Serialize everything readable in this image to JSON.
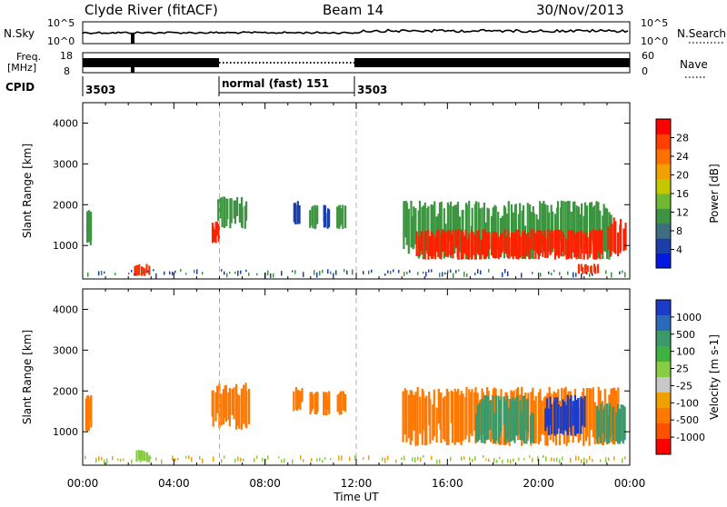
{
  "header": {
    "station": "Clyde River (fitACF)",
    "beam": "Beam 14",
    "date": "30/Nov/2013"
  },
  "top_panels": {
    "nsky_label": "N.Sky",
    "nsky_tick_top": "10^5",
    "nsky_tick_bottom": "10^0",
    "nsearch_label": "N.Search",
    "nsearch_tick_top": "10^5",
    "nsearch_tick_bottom": "10^0",
    "freq_label_1": "Freq.",
    "freq_label_2": "[MHz]",
    "freq_tick_top": "18",
    "freq_tick_bottom": "8",
    "nave_label": "Nave",
    "nave_tick_top": "60",
    "nave_tick_bottom": "0",
    "cpid_label": "CPID",
    "cpid_segments": [
      {
        "label": "3503",
        "start_hour": 0.0
      },
      {
        "label": "normal (fast) 151",
        "start_hour": 6.0
      },
      {
        "label": "3503",
        "start_hour": 12.0
      }
    ]
  },
  "chart_data": [
    {
      "type": "heatmap",
      "name": "power",
      "ylabel": "Slant Range [km]",
      "xlabel": "Time UT",
      "xlim": [
        0,
        24
      ],
      "ylim": [
        180,
        4500
      ],
      "yticks": [
        1000,
        2000,
        3000,
        4000
      ],
      "xticks": [
        "00:00",
        "04:00",
        "08:00",
        "12:00",
        "16:00",
        "20:00",
        "00:00"
      ],
      "colorbar_label": "Power [dB]",
      "colorbar_ticks": [
        4,
        8,
        12,
        16,
        20,
        24,
        28
      ],
      "colorbar_colors": [
        "#0018e0",
        "#1c3ea8",
        "#3c6e80",
        "#3c9440",
        "#70b830",
        "#c4c800",
        "#f0a000",
        "#ff7000",
        "#ff4000",
        "#ff0000"
      ],
      "features": [
        {
          "t0": 0.1,
          "t1": 0.35,
          "r0": 1000,
          "r1": 1900,
          "color": "#3c9440"
        },
        {
          "t0": 2.2,
          "t1": 2.9,
          "r0": 250,
          "r1": 550,
          "color": "#ff3000"
        },
        {
          "t0": 5.6,
          "t1": 5.95,
          "r0": 1050,
          "r1": 1600,
          "color": "#ff2000"
        },
        {
          "t0": 5.9,
          "t1": 7.2,
          "r0": 1400,
          "r1": 2200,
          "color": "#3c9440"
        },
        {
          "t0": 9.2,
          "t1": 9.5,
          "r0": 1500,
          "r1": 2100,
          "color": "#1c3ea8"
        },
        {
          "t0": 9.9,
          "t1": 10.3,
          "r0": 1400,
          "r1": 2000,
          "color": "#3c9440"
        },
        {
          "t0": 10.5,
          "t1": 10.8,
          "r0": 1400,
          "r1": 2000,
          "color": "#1c3ea8"
        },
        {
          "t0": 11.1,
          "t1": 11.5,
          "r0": 1400,
          "r1": 2000,
          "color": "#3c9440"
        },
        {
          "t0": 14.0,
          "t1": 23.2,
          "r0": 650,
          "r1": 2100,
          "color": "#3c9440"
        },
        {
          "t0": 14.6,
          "t1": 22.8,
          "r0": 650,
          "r1": 1400,
          "color": "#ff2000"
        },
        {
          "t0": 21.7,
          "t1": 22.6,
          "r0": 300,
          "r1": 550,
          "color": "#ff3000"
        },
        {
          "t0": 23.0,
          "t1": 23.8,
          "r0": 700,
          "r1": 1700,
          "color": "#ff2000"
        }
      ]
    },
    {
      "type": "heatmap",
      "name": "velocity",
      "ylabel": "Slant Range [km]",
      "xlabel": "Time UT",
      "xlim": [
        0,
        24
      ],
      "ylim": [
        180,
        4500
      ],
      "yticks": [
        1000,
        2000,
        3000,
        4000
      ],
      "xticks": [
        "00:00",
        "04:00",
        "08:00",
        "12:00",
        "16:00",
        "20:00",
        "00:00"
      ],
      "colorbar_label": "Velocity [m s-1]",
      "colorbar_ticks": [
        1000,
        500,
        100,
        25,
        -25,
        -100,
        -500,
        -1000
      ],
      "colorbar_colors": [
        "#1a3cc8",
        "#2a6ab8",
        "#3c9a6a",
        "#40b040",
        "#88cc44",
        "#c8c8c8",
        "#f0a000",
        "#ff7800",
        "#ff5000",
        "#ff0000"
      ],
      "features": [
        {
          "t0": 0.1,
          "t1": 0.35,
          "r0": 1000,
          "r1": 1900,
          "color": "#ff7800"
        },
        {
          "t0": 2.3,
          "t1": 2.9,
          "r0": 250,
          "r1": 550,
          "color": "#88cc44"
        },
        {
          "t0": 5.6,
          "t1": 7.3,
          "r0": 1050,
          "r1": 2200,
          "color": "#ff7800"
        },
        {
          "t0": 9.2,
          "t1": 9.6,
          "r0": 1500,
          "r1": 2100,
          "color": "#ff7800"
        },
        {
          "t0": 9.9,
          "t1": 10.3,
          "r0": 1400,
          "r1": 2000,
          "color": "#ff7800"
        },
        {
          "t0": 10.5,
          "t1": 10.8,
          "r0": 1400,
          "r1": 2000,
          "color": "#ff7800"
        },
        {
          "t0": 11.1,
          "t1": 11.5,
          "r0": 1400,
          "r1": 2000,
          "color": "#ff7800"
        },
        {
          "t0": 14.0,
          "t1": 23.5,
          "r0": 650,
          "r1": 2100,
          "color": "#ff7800"
        },
        {
          "t0": 17.2,
          "t1": 19.8,
          "r0": 700,
          "r1": 1900,
          "color": "#3c9a6a"
        },
        {
          "t0": 20.2,
          "t1": 22.0,
          "r0": 900,
          "r1": 1900,
          "color": "#1a3cc8"
        },
        {
          "t0": 22.5,
          "t1": 23.8,
          "r0": 700,
          "r1": 1700,
          "color": "#3c9a6a"
        }
      ]
    }
  ]
}
